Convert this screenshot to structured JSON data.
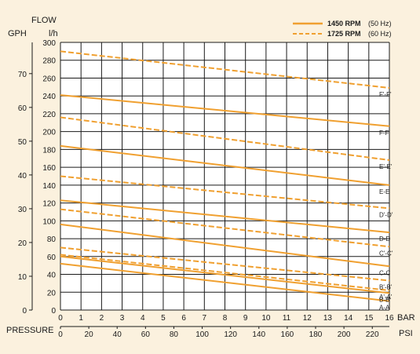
{
  "chart_data": {
    "type": "line",
    "header": {
      "flow": "FLOW",
      "gph": "GPH",
      "lh": "l/h"
    },
    "bottom": {
      "pressure": "PRESSURE",
      "bar": "BAR",
      "psi": "PSI"
    },
    "x_bar": {
      "range": [
        0,
        16
      ],
      "ticks": [
        0,
        1,
        2,
        3,
        4,
        5,
        6,
        7,
        8,
        9,
        10,
        11,
        12,
        13,
        14,
        15,
        16
      ]
    },
    "x_psi_ticks": [
      0,
      20,
      40,
      60,
      80,
      100,
      120,
      140,
      160,
      180,
      200,
      220
    ],
    "y_lh": {
      "range": [
        0,
        300
      ],
      "ticks": [
        0,
        20,
        40,
        60,
        80,
        100,
        120,
        140,
        160,
        180,
        200,
        220,
        240,
        260,
        280,
        300
      ]
    },
    "y_gph_ticks": [
      0,
      10,
      20,
      30,
      40,
      50,
      60,
      70
    ],
    "legend": [
      {
        "rpm": "1450 RPM",
        "hz": "(50 Hz)",
        "style": "solid"
      },
      {
        "rpm": "1725 RPM",
        "hz": "(60 Hz)",
        "style": "dashed"
      }
    ],
    "series": [
      {
        "name": "A-A",
        "style": "solid",
        "x": [
          0,
          16
        ],
        "y": [
          52,
          10
        ]
      },
      {
        "name": "A'-A'",
        "style": "dashed",
        "x": [
          0,
          16
        ],
        "y": [
          62,
          22
        ]
      },
      {
        "name": "B-B",
        "style": "solid",
        "x": [
          0,
          16
        ],
        "y": [
          60,
          19
        ]
      },
      {
        "name": "B'-B'",
        "style": "dashed",
        "x": [
          0,
          16
        ],
        "y": [
          70,
          33
        ]
      },
      {
        "name": "C-C",
        "style": "solid",
        "x": [
          0,
          16
        ],
        "y": [
          96,
          49
        ]
      },
      {
        "name": "C'-C'",
        "style": "dashed",
        "x": [
          0,
          16
        ],
        "y": [
          113,
          71
        ]
      },
      {
        "name": "D-D",
        "style": "solid",
        "x": [
          0,
          16
        ],
        "y": [
          123,
          87
        ]
      },
      {
        "name": "D'-D'",
        "style": "dashed",
        "x": [
          0,
          16
        ],
        "y": [
          150,
          114
        ]
      },
      {
        "name": "E-E",
        "style": "solid",
        "x": [
          0,
          16
        ],
        "y": [
          184,
          140
        ]
      },
      {
        "name": "E'-E'",
        "style": "dashed",
        "x": [
          0,
          16
        ],
        "y": [
          216,
          168
        ]
      },
      {
        "name": "F-F",
        "style": "solid",
        "x": [
          0,
          16
        ],
        "y": [
          241,
          206
        ]
      },
      {
        "name": "F'-F'",
        "style": "dashed",
        "x": [
          0,
          16
        ],
        "y": [
          290,
          249
        ]
      }
    ],
    "colors": {
      "curve": "#f0a030",
      "grid": "#1a1a1a",
      "background": "#fbf1de",
      "plot": "#ffffff"
    }
  }
}
